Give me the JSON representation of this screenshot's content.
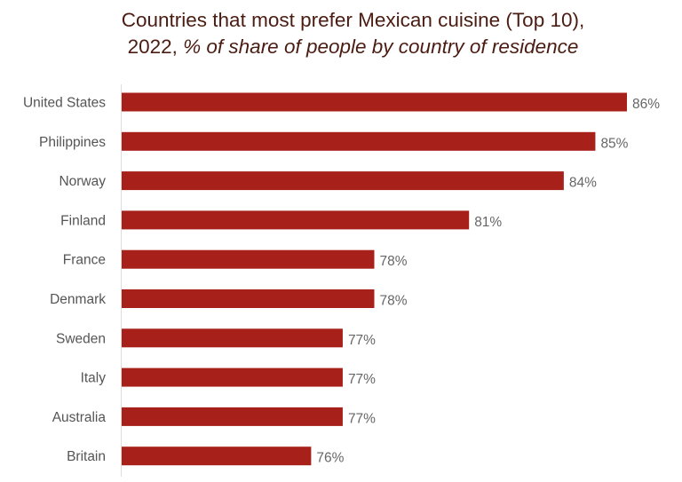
{
  "chart_data": {
    "type": "bar",
    "orientation": "horizontal",
    "title": "Countries that most prefer Mexican cuisine (Top 10),",
    "subtitle_prefix": "2022, ",
    "subtitle": "% of share of people by country of residence",
    "categories": [
      "United States",
      "Philippines",
      "Norway",
      "Finland",
      "France",
      "Denmark",
      "Sweden",
      "Italy",
      "Australia",
      "Britain"
    ],
    "values": [
      86,
      85,
      84,
      81,
      78,
      78,
      77,
      77,
      77,
      76
    ],
    "labels": [
      "86%",
      "85%",
      "84%",
      "81%",
      "78%",
      "78%",
      "77%",
      "77%",
      "77%",
      "76%"
    ],
    "xlim": [
      70,
      86
    ],
    "grid": false,
    "bar_color": "#A8201A",
    "title_color": "#4A1C12"
  }
}
